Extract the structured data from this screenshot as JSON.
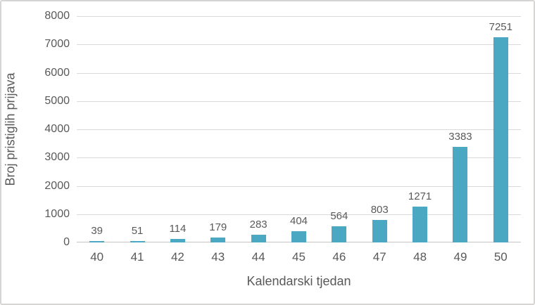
{
  "chart_data": {
    "type": "bar",
    "title": "",
    "xlabel": "Kalendarski tjedan",
    "ylabel": "Broj pristiglih prijava",
    "categories": [
      "40",
      "41",
      "42",
      "43",
      "44",
      "45",
      "46",
      "47",
      "48",
      "49",
      "50"
    ],
    "values": [
      39,
      51,
      114,
      179,
      283,
      404,
      564,
      803,
      1271,
      3383,
      7251
    ],
    "data_labels": [
      "39",
      "51",
      "114",
      "179",
      "283",
      "404",
      "564",
      "803",
      "1271",
      "3383",
      "7251"
    ],
    "ytick_labels": [
      "0",
      "1000",
      "2000",
      "3000",
      "4000",
      "5000",
      "6000",
      "7000",
      "8000"
    ],
    "ylim": [
      0,
      8000
    ],
    "ytick_step": 1000,
    "grid": "horizontal",
    "legend": "none",
    "colors": {
      "bar": "#4AA8C3",
      "text": "#595959",
      "gridline": "#D9D9D9",
      "axis_line": "#C6C6C6",
      "frame_border": "#D7D4D4",
      "background": "#FFFFFF"
    }
  }
}
